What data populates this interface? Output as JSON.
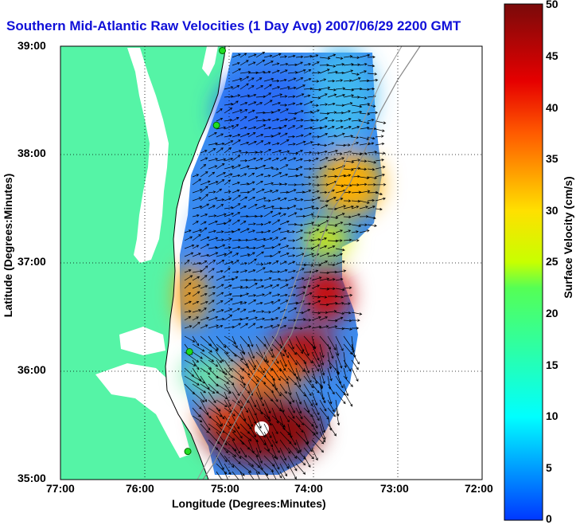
{
  "title": "Southern Mid-Atlantic Raw Velocities (1 Day Avg) 2007/06/29 2200 GMT",
  "axes": {
    "xlabel": "Longitude (Degrees:Minutes)",
    "ylabel": "Latitude (Degrees:Minutes)",
    "x_ticks": [
      "77:00",
      "76:00",
      "75:00",
      "74:00",
      "73:00",
      "72:00"
    ],
    "y_ticks": [
      "39:00",
      "38:00",
      "37:00",
      "36:00",
      "35:00"
    ]
  },
  "colorbar": {
    "label": "Surface Velocity (cm/s)",
    "ticks": [
      "50",
      "45",
      "40",
      "35",
      "30",
      "25",
      "20",
      "15",
      "10",
      "5",
      "0"
    ],
    "range": [
      0,
      50
    ],
    "units": "cm/s"
  },
  "colors": {
    "land": "#55f4a6",
    "title": "#1010d8",
    "low": "#0a2cff",
    "high": "#7a0a0a"
  },
  "map": {
    "lon_range": [
      -77,
      -72
    ],
    "lat_range": [
      35,
      39
    ],
    "grid": "dotted",
    "stations": [
      {
        "lon": -75.08,
        "lat": 38.96
      },
      {
        "lon": -75.15,
        "lat": 38.27
      },
      {
        "lon": -75.47,
        "lat": 36.18
      },
      {
        "lon": -75.49,
        "lat": 35.26
      }
    ]
  }
}
